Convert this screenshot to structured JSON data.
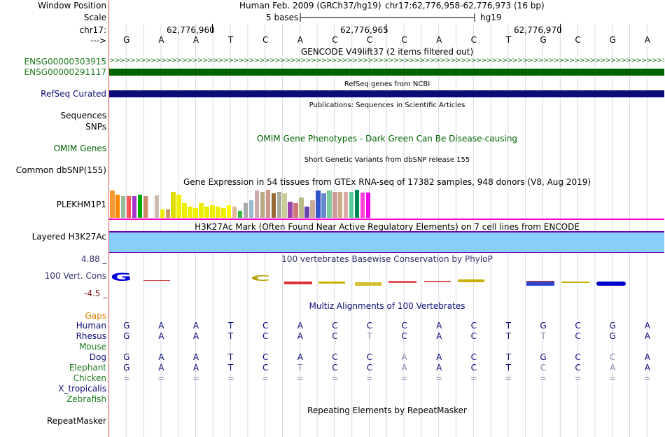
{
  "header": {
    "window_position_label": "Window Position",
    "scale_label": "Scale",
    "chrom_label": "chr17:",
    "arrow_label": "--->",
    "assembly": "Human Feb. 2009 (GRCh37/hg19)",
    "position": "chr17:62,776,958-62,776,973 (16 bp)",
    "scale_text": "5 bases",
    "db": "hg19",
    "coords": [
      "62,776,960",
      "62,776,965",
      "62,776,970"
    ]
  },
  "sequence": [
    "G",
    "A",
    "A",
    "T",
    "C",
    "A",
    "C",
    "C",
    "C",
    "A",
    "C",
    "T",
    "G",
    "C",
    "G",
    "A"
  ],
  "tracks": {
    "gencode": {
      "title": "GENCODE V49lift37 (2 items filtered out)",
      "item1": "ENSG00000303915",
      "item2": "ENSG00000291117",
      "color1": "#1e7b1e",
      "color2": "#006400"
    },
    "refseq": {
      "title": "RefSeq genes from NCBI",
      "label": "RefSeq Curated",
      "color": "#0c0c78"
    },
    "publications": {
      "title": "Publications: Sequences in Scientific Articles",
      "label1": "Sequences",
      "label2": "SNPs"
    },
    "omim": {
      "title": "OMIM Gene Phenotypes - Dark Green Can Be Disease-causing",
      "label": "OMIM Genes",
      "color": "#006400"
    },
    "dbsnp": {
      "title": "Short Genetic Variants from dbSNP release 155",
      "label": "Common dbSNP(155)"
    },
    "gtex": {
      "title": "Gene Expression in 54 tissues from GTEx RNA-seq of 17382 samples, 948 donors (V8, Aug 2019)",
      "label": "PLEKHM1P1",
      "bars": [
        {
          "color": "#ff9a33",
          "value": 0.95
        },
        {
          "color": "#ff8800",
          "value": 0.8
        },
        {
          "color": "#99bb99",
          "value": 0.75
        },
        {
          "color": "#ff5555",
          "value": 0.75
        },
        {
          "color": "#aa33cc",
          "value": 0.75
        },
        {
          "color": "#00aa00",
          "value": 0.8
        },
        {
          "color": "#cc8866",
          "value": 0.75
        },
        {
          "color": "#ffffff",
          "value": 0.7
        },
        {
          "color": "#ccbbaa",
          "value": 0.78
        },
        {
          "color": "#eeee00",
          "value": 0.3
        },
        {
          "color": "#cc9966",
          "value": 0.3
        },
        {
          "color": "#dddd00",
          "value": 0.9
        },
        {
          "color": "#eeee00",
          "value": 0.8
        },
        {
          "color": "#eeee00",
          "value": 0.5
        },
        {
          "color": "#eeee00",
          "value": 0.4
        },
        {
          "color": "#eeee00",
          "value": 0.35
        },
        {
          "color": "#eeee00",
          "value": 0.5
        },
        {
          "color": "#eeee00",
          "value": 0.4
        },
        {
          "color": "#eeee00",
          "value": 0.45
        },
        {
          "color": "#eeee00",
          "value": 0.4
        },
        {
          "color": "#eeee00",
          "value": 0.35
        },
        {
          "color": "#ffff00",
          "value": 0.45
        },
        {
          "color": "#ddbb99",
          "value": 0.4
        },
        {
          "color": "#33bb44",
          "value": 0.25
        },
        {
          "color": "#aaaaaa",
          "value": 0.5
        },
        {
          "color": "#99bbcc",
          "value": 0.6
        },
        {
          "color": "#ccaaaa",
          "value": 0.95
        },
        {
          "color": "#bbaa88",
          "value": 0.9
        },
        {
          "color": "#cc9988",
          "value": 0.98
        },
        {
          "color": "#996633",
          "value": 0.85
        },
        {
          "color": "#aaaa99",
          "value": 0.9
        },
        {
          "color": "#cccc99",
          "value": 0.85
        },
        {
          "color": "#9944aa",
          "value": 0.55
        },
        {
          "color": "#cc7777",
          "value": 0.5
        },
        {
          "color": "#bbbb88",
          "value": 0.7
        },
        {
          "color": "#6644aa",
          "value": 0.4
        },
        {
          "color": "#ccaa99",
          "value": 0.6
        },
        {
          "color": "#3355cc",
          "value": 0.95
        },
        {
          "color": "#6688cc",
          "value": 0.85
        },
        {
          "color": "#77cc99",
          "value": 0.95
        },
        {
          "color": "#cc9999",
          "value": 0.9
        },
        {
          "color": "#ccaa88",
          "value": 0.9
        },
        {
          "color": "#ddaaaa",
          "value": 0.9
        },
        {
          "color": "#55cc99",
          "value": 0.9
        },
        {
          "color": "#008855",
          "value": 0.98
        },
        {
          "color": "#ff44dd",
          "value": 0.88
        },
        {
          "color": "#ee00ee",
          "value": 0.88
        }
      ]
    },
    "h3k27ac": {
      "title": "H3K27Ac Mark (Often Found Near Active Regulatory Elements) on 7 cell lines from ENCODE",
      "label": "Layered H3K27Ac",
      "fill": "#87cefa",
      "border": "#7700aa",
      "topline": "#ff00cc"
    },
    "conservation": {
      "title": "100 vertebrates Basewise Conservation by PhyloP",
      "label": "100 Vert. Cons",
      "max": "4.88 _",
      "min": "-4.5 _",
      "color": "#33336e",
      "max_color": "#33336e",
      "min_color": "#8b1a1a"
    },
    "multiz": {
      "title": "Multiz Alignments of 100 Vertebrates",
      "gaps_label": "Gaps",
      "gaps_color": "#e08000",
      "species": [
        {
          "name": "Human",
          "color": "#0c0c78",
          "seq": [
            "G",
            "A",
            "A",
            "T",
            "C",
            "A",
            "C",
            "C",
            "C",
            "A",
            "C",
            "T",
            "G",
            "C",
            "G",
            "A"
          ]
        },
        {
          "name": "Rhesus",
          "color": "#0c0c78",
          "seq": [
            "G",
            "A",
            "A",
            "T",
            "C",
            "A",
            "C",
            "T",
            "C",
            "A",
            "C",
            "T",
            "T",
            "C",
            "G",
            "A"
          ]
        },
        {
          "name": "Mouse",
          "color": "#1e7b1e",
          "seq": []
        },
        {
          "name": "Dog",
          "color": "#0c0c78",
          "seq": [
            "G",
            "A",
            "A",
            "T",
            "C",
            "A",
            "C",
            "C",
            "A",
            "A",
            "C",
            "T",
            "G",
            "C",
            "C",
            "A"
          ]
        },
        {
          "name": "Elephant",
          "color": "#1e7b1e",
          "seq": [
            "G",
            "A",
            "A",
            "T",
            "C",
            "T",
            "C",
            "C",
            "A",
            "A",
            "C",
            "T",
            "C",
            "C",
            "A",
            "A"
          ]
        },
        {
          "name": "Chicken",
          "color": "#1e7b1e",
          "seq": [
            "=",
            "=",
            "=",
            "=",
            "=",
            "=",
            "=",
            "=",
            "=",
            "=",
            "=",
            "=",
            "=",
            "=",
            "=",
            "="
          ]
        },
        {
          "name": "X_tropicalis",
          "color": "#0c0c78",
          "seq": []
        },
        {
          "name": "Zebrafish",
          "color": "#1e7b1e",
          "seq": []
        }
      ]
    },
    "repeatmasker": {
      "title": "Repeating Elements by RepeatMasker",
      "label": "RepeatMasker"
    }
  }
}
